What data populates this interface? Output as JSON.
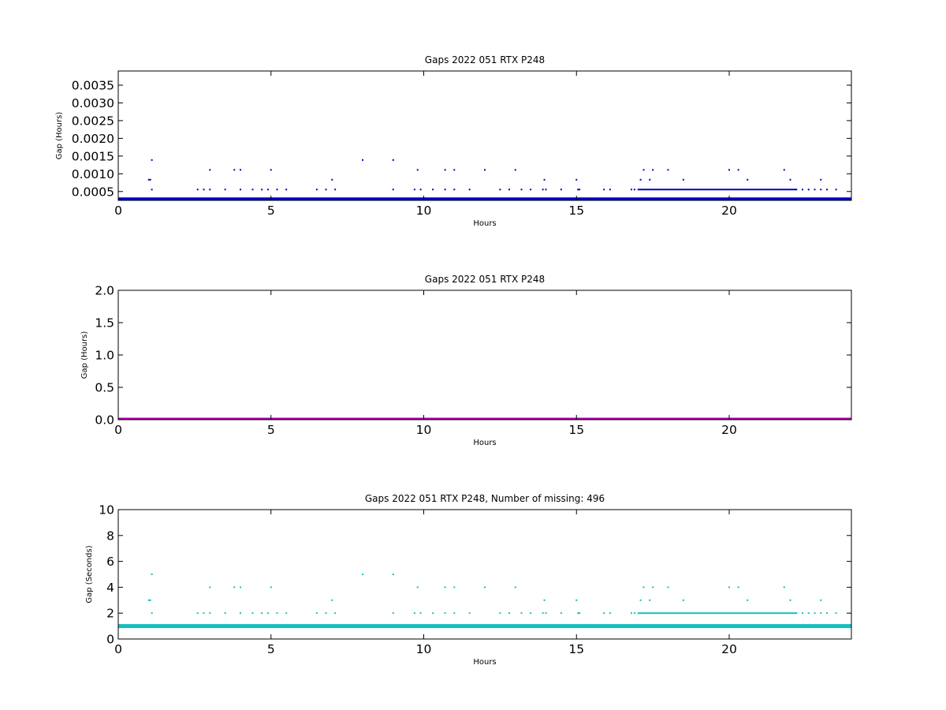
{
  "colors": {
    "gaps_hours": "#0000cc",
    "gaps_hours_full": "#aa00aa",
    "gaps_seconds": "#17bcbc"
  },
  "chart_data": [
    {
      "type": "scatter",
      "title": "Gaps 2022 051 RTX  P248",
      "xlabel": "Hours",
      "ylabel": "Gap (Hours)",
      "xlim": [
        0,
        24
      ],
      "ylim": [
        0.00025,
        0.0039
      ],
      "xticks": [
        "0",
        "5",
        "10",
        "15",
        "20"
      ],
      "yticks": [
        "0.0005",
        "0.0010",
        "0.0015",
        "0.0020",
        "0.0025",
        "0.0030",
        "0.0035"
      ],
      "baseline": 0.000278,
      "series": [
        {
          "points": [
            [
              1.0,
              0.000833
            ],
            [
              1.05,
              0.000833
            ],
            [
              1.1,
              0.001389
            ],
            [
              1.1,
              0.000556
            ],
            [
              2.6,
              0.000556
            ],
            [
              2.8,
              0.000556
            ],
            [
              3.0,
              0.001111
            ],
            [
              3.0,
              0.000556
            ],
            [
              3.5,
              0.000556
            ],
            [
              3.8,
              0.001111
            ],
            [
              4.0,
              0.001111
            ],
            [
              4.0,
              0.000556
            ],
            [
              4.4,
              0.000556
            ],
            [
              4.7,
              0.000556
            ],
            [
              4.9,
              0.000556
            ],
            [
              5.0,
              0.001111
            ],
            [
              5.2,
              0.000556
            ],
            [
              5.5,
              0.000556
            ],
            [
              6.5,
              0.000556
            ],
            [
              6.8,
              0.000556
            ],
            [
              7.0,
              0.000833
            ],
            [
              7.1,
              0.000556
            ],
            [
              8.0,
              0.001389
            ],
            [
              9.0,
              0.001389
            ],
            [
              9.0,
              0.000556
            ],
            [
              9.7,
              0.000556
            ],
            [
              9.8,
              0.001111
            ],
            [
              9.9,
              0.000556
            ],
            [
              10.3,
              0.000556
            ],
            [
              10.7,
              0.001111
            ],
            [
              10.7,
              0.000556
            ],
            [
              11.0,
              0.001111
            ],
            [
              11.0,
              0.000556
            ],
            [
              11.5,
              0.000556
            ],
            [
              12.0,
              0.001111
            ],
            [
              12.5,
              0.000556
            ],
            [
              12.8,
              0.000556
            ],
            [
              13.0,
              0.001111
            ],
            [
              13.2,
              0.000556
            ],
            [
              13.5,
              0.000556
            ],
            [
              13.9,
              0.000556
            ],
            [
              13.95,
              0.000833
            ],
            [
              14.0,
              0.000556
            ],
            [
              14.5,
              0.000556
            ],
            [
              15.0,
              0.000833
            ],
            [
              15.05,
              0.000556
            ],
            [
              15.1,
              0.000556
            ],
            [
              15.9,
              0.000556
            ],
            [
              16.1,
              0.000556
            ],
            [
              16.8,
              0.000556
            ],
            [
              16.9,
              0.000556
            ],
            [
              17.1,
              0.000833
            ],
            [
              17.2,
              0.001111
            ],
            [
              17.4,
              0.000833
            ],
            [
              17.5,
              0.001111
            ],
            [
              18.0,
              0.001111
            ],
            [
              18.5,
              0.000833
            ],
            [
              20.0,
              0.001111
            ],
            [
              20.3,
              0.001111
            ],
            [
              20.6,
              0.000833
            ],
            [
              21.8,
              0.001111
            ],
            [
              22.0,
              0.000833
            ],
            [
              22.2,
              0.000556
            ],
            [
              22.4,
              0.000556
            ],
            [
              22.6,
              0.000556
            ],
            [
              22.8,
              0.000556
            ],
            [
              23.0,
              0.000833
            ],
            [
              23.0,
              0.000556
            ],
            [
              23.2,
              0.000556
            ],
            [
              23.5,
              0.000556
            ]
          ],
          "dense_runs": [
            [
              17.0,
              22.2,
              0.000556
            ]
          ]
        }
      ]
    },
    {
      "type": "scatter",
      "title": "Gaps 2022 051 RTX  P248",
      "xlabel": "Hours",
      "ylabel": "Gap (Hours)",
      "xlim": [
        0,
        24
      ],
      "ylim": [
        0,
        2.0
      ],
      "xticks": [
        "0",
        "5",
        "10",
        "15",
        "20"
      ],
      "yticks": [
        "0.0",
        "0.5",
        "1.0",
        "1.5",
        "2.0"
      ],
      "baseline": 0.0,
      "series": [
        {
          "points": [],
          "dense_runs": []
        }
      ]
    },
    {
      "type": "scatter",
      "title": "Gaps 2022 051 RTX  P248, Number of missing: 496",
      "xlabel": "Hours",
      "ylabel": "Gap (Seconds)",
      "xlim": [
        0,
        24
      ],
      "ylim": [
        0,
        10
      ],
      "xticks": [
        "0",
        "5",
        "10",
        "15",
        "20"
      ],
      "yticks": [
        "0",
        "2",
        "4",
        "6",
        "8",
        "10"
      ],
      "baseline": 1.0,
      "series": [
        {
          "points": [
            [
              1.0,
              3
            ],
            [
              1.05,
              3
            ],
            [
              1.1,
              5
            ],
            [
              1.1,
              2
            ],
            [
              2.6,
              2
            ],
            [
              2.8,
              2
            ],
            [
              3.0,
              4
            ],
            [
              3.0,
              2
            ],
            [
              3.5,
              2
            ],
            [
              3.8,
              4
            ],
            [
              4.0,
              4
            ],
            [
              4.0,
              2
            ],
            [
              4.4,
              2
            ],
            [
              4.7,
              2
            ],
            [
              4.9,
              2
            ],
            [
              5.0,
              4
            ],
            [
              5.2,
              2
            ],
            [
              5.5,
              2
            ],
            [
              6.5,
              2
            ],
            [
              6.8,
              2
            ],
            [
              7.0,
              3
            ],
            [
              7.1,
              2
            ],
            [
              8.0,
              5
            ],
            [
              9.0,
              5
            ],
            [
              9.0,
              2
            ],
            [
              9.7,
              2
            ],
            [
              9.8,
              4
            ],
            [
              9.9,
              2
            ],
            [
              10.3,
              2
            ],
            [
              10.7,
              4
            ],
            [
              10.7,
              2
            ],
            [
              11.0,
              4
            ],
            [
              11.0,
              2
            ],
            [
              11.5,
              2
            ],
            [
              12.0,
              4
            ],
            [
              12.5,
              2
            ],
            [
              12.8,
              2
            ],
            [
              13.0,
              4
            ],
            [
              13.2,
              2
            ],
            [
              13.5,
              2
            ],
            [
              13.9,
              2
            ],
            [
              13.95,
              3
            ],
            [
              14.0,
              2
            ],
            [
              14.5,
              2
            ],
            [
              15.0,
              3
            ],
            [
              15.05,
              2
            ],
            [
              15.1,
              2
            ],
            [
              15.9,
              2
            ],
            [
              16.1,
              2
            ],
            [
              16.8,
              2
            ],
            [
              16.9,
              2
            ],
            [
              17.1,
              3
            ],
            [
              17.2,
              4
            ],
            [
              17.4,
              3
            ],
            [
              17.5,
              4
            ],
            [
              18.0,
              4
            ],
            [
              18.5,
              3
            ],
            [
              20.0,
              4
            ],
            [
              20.3,
              4
            ],
            [
              20.6,
              3
            ],
            [
              21.8,
              4
            ],
            [
              22.0,
              3
            ],
            [
              22.2,
              2
            ],
            [
              22.4,
              2
            ],
            [
              22.6,
              2
            ],
            [
              22.8,
              2
            ],
            [
              23.0,
              3
            ],
            [
              23.0,
              2
            ],
            [
              23.2,
              2
            ],
            [
              23.5,
              2
            ]
          ],
          "dense_runs": [
            [
              17.0,
              22.2,
              2
            ]
          ]
        }
      ]
    }
  ]
}
